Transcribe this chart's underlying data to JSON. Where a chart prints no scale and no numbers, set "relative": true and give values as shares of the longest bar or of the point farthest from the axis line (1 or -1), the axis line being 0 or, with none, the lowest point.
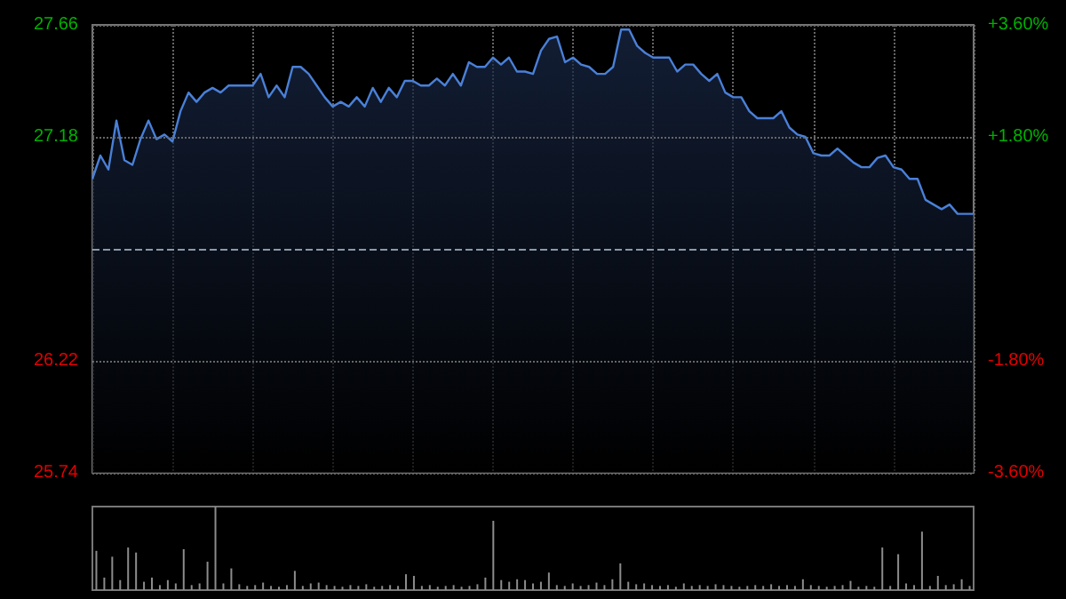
{
  "chart_data": [
    {
      "type": "area",
      "categories": [
        null,
        null,
        null,
        null,
        null,
        null,
        null,
        null,
        null,
        null,
        null,
        null,
        null,
        null,
        null,
        null,
        null,
        null,
        null,
        null,
        null,
        null,
        null,
        null,
        null,
        null,
        null,
        null,
        null,
        null,
        null,
        null,
        null,
        null,
        null,
        null,
        null,
        null,
        null,
        null,
        null,
        null,
        null,
        null,
        null,
        null,
        null,
        null,
        null,
        null,
        null,
        null,
        null,
        null,
        null,
        null,
        null,
        null,
        null,
        null,
        null,
        null,
        null,
        null,
        null,
        null,
        null,
        null,
        null,
        null,
        null,
        null,
        null,
        null,
        null,
        null,
        null,
        null,
        null,
        null,
        null,
        null,
        null,
        null,
        null,
        null,
        null,
        null,
        null,
        null,
        null,
        null,
        null,
        null,
        null,
        null,
        null,
        null,
        null,
        null,
        null,
        null,
        null,
        null,
        null,
        null,
        null,
        null,
        null,
        null,
        null
      ],
      "series": [
        {
          "color": "#4a80d8",
          "values": [
            27.0,
            27.1,
            27.04,
            27.25,
            27.08,
            27.06,
            27.17,
            27.25,
            27.17,
            27.19,
            27.16,
            27.29,
            27.37,
            27.33,
            27.37,
            27.39,
            27.37,
            27.4,
            27.4,
            27.4,
            27.4,
            27.45,
            27.35,
            27.4,
            27.35,
            27.48,
            27.48,
            27.45,
            27.4,
            27.35,
            27.31,
            27.33,
            27.31,
            27.35,
            27.31,
            27.39,
            27.33,
            27.39,
            27.35,
            27.42,
            27.42,
            27.4,
            27.4,
            27.43,
            27.4,
            27.45,
            27.4,
            27.5,
            27.48,
            27.48,
            27.52,
            27.49,
            27.52,
            27.46,
            27.46,
            27.45,
            27.55,
            27.6,
            27.61,
            27.5,
            27.52,
            27.49,
            27.48,
            27.45,
            27.45,
            27.48,
            27.64,
            27.64,
            27.57,
            27.54,
            27.52,
            27.52,
            27.52,
            27.46,
            27.49,
            27.49,
            27.45,
            27.42,
            27.45,
            27.37,
            27.35,
            27.35,
            27.29,
            27.26,
            27.26,
            27.26,
            27.29,
            27.22,
            27.19,
            27.18,
            27.11,
            27.1,
            27.1,
            27.13,
            27.1,
            27.07,
            27.05,
            27.05,
            27.09,
            27.1,
            27.05,
            27.04,
            27.0,
            27.0,
            26.91,
            26.89,
            26.87,
            26.89,
            26.85,
            26.85,
            26.85
          ]
        }
      ],
      "ylim": [
        25.74,
        27.66
      ],
      "yticks": [
        25.74,
        26.22,
        27.18,
        27.66
      ],
      "y2lim": [
        -3.6,
        3.6
      ],
      "y2ticks": [
        {
          "value": -3.6,
          "label": "-3.60%"
        },
        {
          "value": -1.8,
          "label": "-1.80%"
        },
        {
          "value": 1.8,
          "label": "+1.80%"
        },
        {
          "value": 3.6,
          "label": "+3.60%"
        }
      ],
      "ref_lines": [
        {
          "axis": "y",
          "value": 26.7,
          "line_style": "dashed"
        }
      ],
      "grid": true,
      "line_style": "solid"
    },
    {
      "type": "bar",
      "relative": true,
      "categories": [
        null,
        null,
        null,
        null,
        null,
        null,
        null,
        null,
        null,
        null,
        null,
        null,
        null,
        null,
        null,
        null,
        null,
        null,
        null,
        null,
        null,
        null,
        null,
        null,
        null,
        null,
        null,
        null,
        null,
        null,
        null,
        null,
        null,
        null,
        null,
        null,
        null,
        null,
        null,
        null,
        null,
        null,
        null,
        null,
        null,
        null,
        null,
        null,
        null,
        null,
        null,
        null,
        null,
        null,
        null,
        null,
        null,
        null,
        null,
        null,
        null,
        null,
        null,
        null,
        null,
        null,
        null,
        null,
        null,
        null,
        null,
        null,
        null,
        null,
        null,
        null,
        null,
        null,
        null,
        null,
        null,
        null,
        null,
        null,
        null,
        null,
        null,
        null,
        null,
        null,
        null,
        null,
        null,
        null,
        null,
        null,
        null,
        null,
        null,
        null,
        null,
        null,
        null,
        null,
        null,
        null,
        null,
        null,
        null,
        null,
        null
      ],
      "series": [
        {
          "color": "#8c8c8c",
          "values": [
            0.47,
            0.15,
            0.4,
            0.12,
            0.51,
            0.45,
            0.1,
            0.15,
            0.06,
            0.12,
            0.08,
            0.49,
            0.06,
            0.08,
            0.34,
            1.0,
            0.08,
            0.26,
            0.07,
            0.05,
            0.06,
            0.09,
            0.05,
            0.04,
            0.06,
            0.23,
            0.05,
            0.08,
            0.09,
            0.06,
            0.05,
            0.04,
            0.06,
            0.05,
            0.07,
            0.04,
            0.05,
            0.06,
            0.05,
            0.19,
            0.17,
            0.05,
            0.06,
            0.04,
            0.05,
            0.06,
            0.04,
            0.05,
            0.07,
            0.15,
            0.83,
            0.12,
            0.1,
            0.13,
            0.12,
            0.08,
            0.1,
            0.21,
            0.06,
            0.05,
            0.08,
            0.05,
            0.06,
            0.09,
            0.06,
            0.13,
            0.32,
            0.1,
            0.07,
            0.08,
            0.06,
            0.05,
            0.06,
            0.04,
            0.08,
            0.05,
            0.06,
            0.05,
            0.07,
            0.06,
            0.05,
            0.04,
            0.05,
            0.06,
            0.05,
            0.07,
            0.05,
            0.06,
            0.05,
            0.13,
            0.06,
            0.05,
            0.04,
            0.05,
            0.06,
            0.11,
            0.04,
            0.05,
            0.04,
            0.51,
            0.05,
            0.43,
            0.08,
            0.06,
            0.7,
            0.05,
            0.17,
            0.06,
            0.07,
            0.13,
            0.05
          ]
        }
      ],
      "grid": false
    }
  ]
}
